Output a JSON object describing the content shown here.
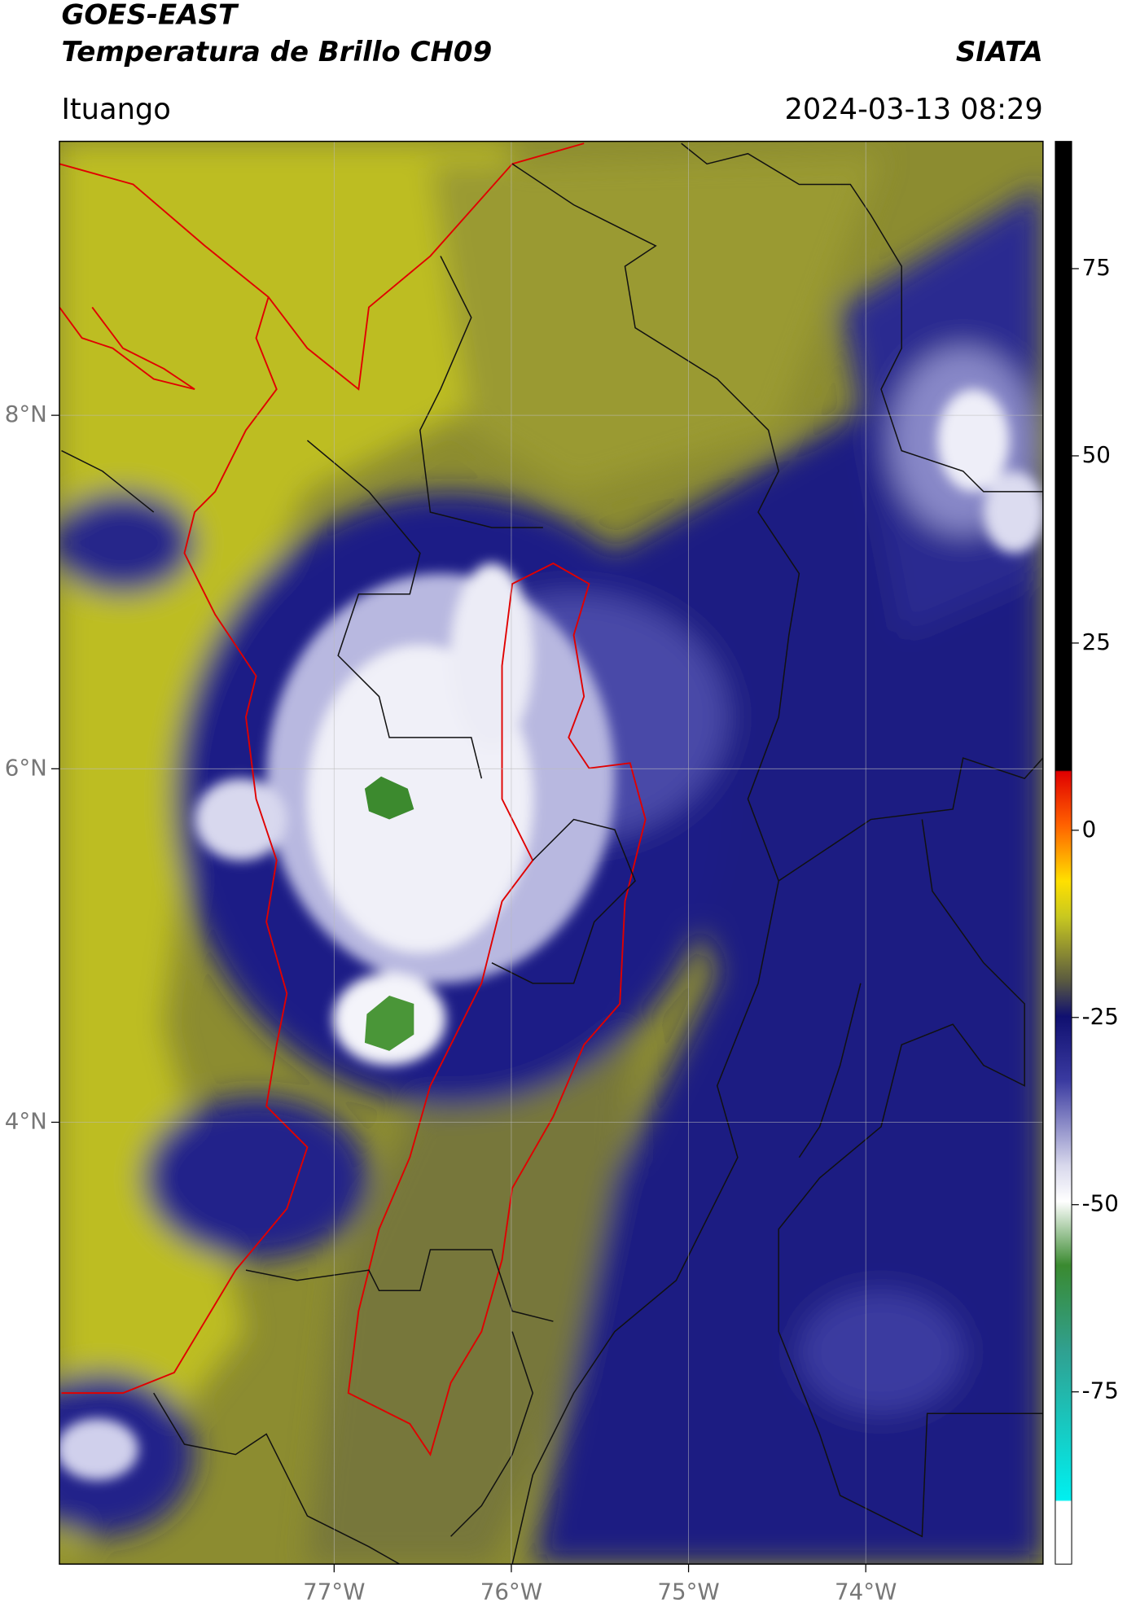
{
  "header": {
    "title": "GOES-EAST",
    "subtitle": "Temperatura de Brillo CH09",
    "source": "SIATA",
    "location": "Ituango",
    "datetime": "2024-03-13 08:29"
  },
  "map": {
    "xlim": [
      -78.55,
      -73.0
    ],
    "ylim": [
      1.5,
      9.55
    ],
    "xticks": [
      {
        "value": -77,
        "label": "77°W"
      },
      {
        "value": -76,
        "label": "76°W"
      },
      {
        "value": -75,
        "label": "75°W"
      },
      {
        "value": -74,
        "label": "74°W"
      }
    ],
    "yticks": [
      {
        "value": 8,
        "label": "8°N"
      },
      {
        "value": 6,
        "label": "6°N"
      },
      {
        "value": 4,
        "label": "4°N"
      }
    ],
    "grid": true
  },
  "colorbar": {
    "lim": [
      -98,
      92
    ],
    "ticks": [
      75,
      50,
      25,
      0,
      -25,
      -50,
      -75
    ]
  }
}
